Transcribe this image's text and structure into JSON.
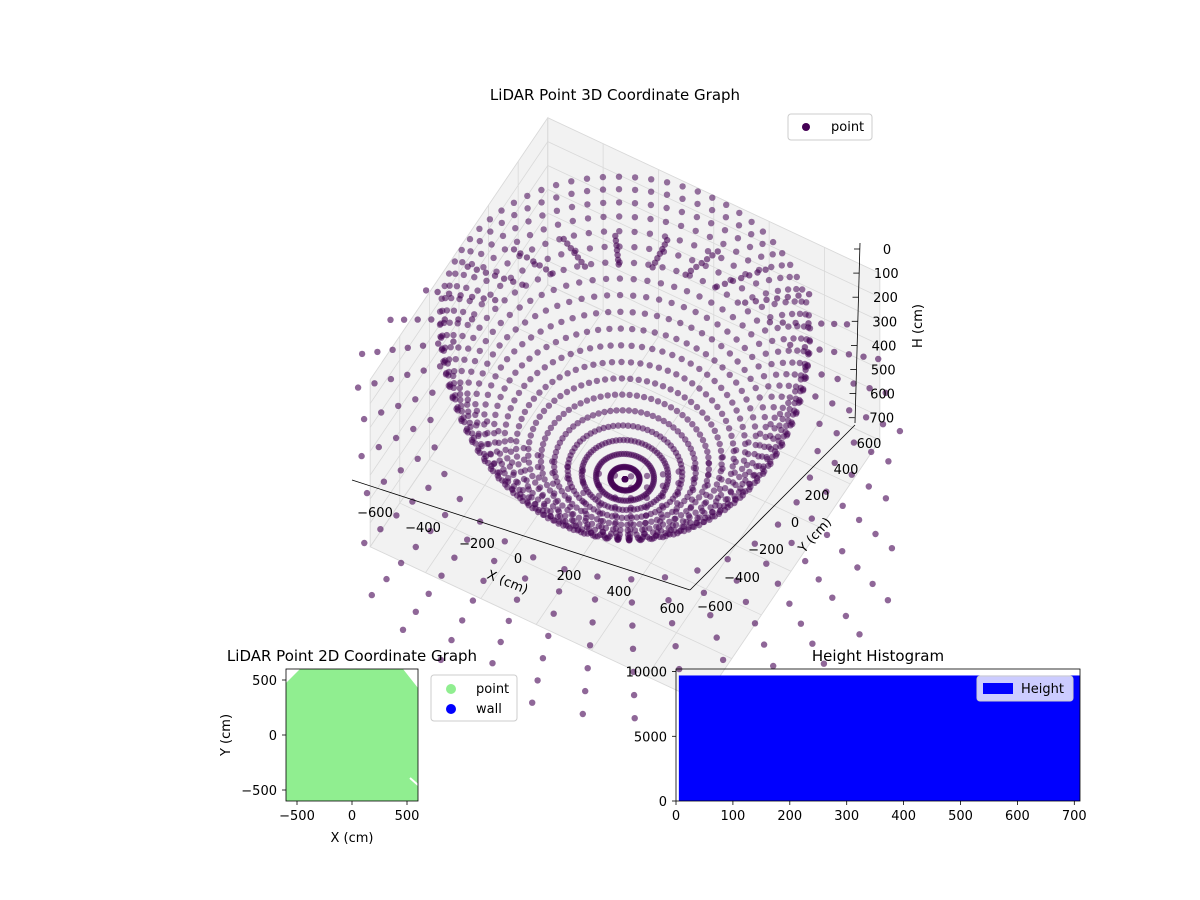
{
  "colors": {
    "point_3d": "#440154",
    "point_2d": "#90ee90",
    "wall": "#0000ff",
    "histogram": "#0000ff",
    "pane": "#f2f2f2",
    "grid": "#d9d9d9"
  },
  "chart_data": [
    {
      "type": "scatter",
      "projection": "3d",
      "title": "LiDAR Point 3D Coordinate Graph",
      "xlabel": "X (cm)",
      "ylabel": "Y (cm)",
      "zlabel": "H (cm)",
      "xlim": [
        -600,
        600
      ],
      "ylim": [
        -600,
        600
      ],
      "zlim": [
        700,
        0
      ],
      "z_inverted": true,
      "x_ticks": [
        "−600",
        "−400",
        "−200",
        "0",
        "200",
        "400",
        "600"
      ],
      "y_ticks": [
        "−600",
        "−400",
        "−200",
        "0",
        "200",
        "400",
        "600"
      ],
      "z_ticks": [
        "0",
        "100",
        "200",
        "300",
        "400",
        "500",
        "600",
        "700"
      ],
      "legend": {
        "position": "upper-right",
        "entries": [
          {
            "label": "point",
            "color": "#440154"
          }
        ]
      },
      "series": [
        {
          "name": "point",
          "description_shape": "bowl of points, radius ~600 cm, depth ~700 cm"
        }
      ],
      "grid": true
    },
    {
      "type": "scatter",
      "title": "LiDAR Point 2D Coordinate Graph",
      "xlabel": "X (cm)",
      "ylabel": "Y (cm)",
      "xlim": [
        -600,
        600
      ],
      "ylim": [
        -600,
        600
      ],
      "x_ticks": [
        "−500",
        "0",
        "500"
      ],
      "y_ticks": [
        "−500",
        "0",
        "500"
      ],
      "legend": {
        "position": "outside-right",
        "entries": [
          {
            "label": "point",
            "color": "#90ee90"
          },
          {
            "label": "wall",
            "color": "#0000ff"
          }
        ]
      },
      "series": [
        {
          "name": "point",
          "extent": [
            [
              -600,
              600
            ],
            [
              -600,
              600
            ]
          ]
        },
        {
          "name": "wall",
          "points": []
        }
      ]
    },
    {
      "type": "bar",
      "subtype": "histogram",
      "title": "Height Histogram",
      "xlabel": "",
      "ylabel": "",
      "xlim": [
        0,
        710
      ],
      "ylim": [
        0,
        10200
      ],
      "x_ticks": [
        "0",
        "100",
        "200",
        "300",
        "400",
        "500",
        "600",
        "700"
      ],
      "y_ticks": [
        "0",
        "5000",
        "10000"
      ],
      "legend": {
        "position": "upper-right",
        "entries": [
          {
            "label": "Height",
            "color": "#0000ff"
          }
        ]
      },
      "series": [
        {
          "name": "Height",
          "bin_range": [
            5,
            710
          ],
          "count": 9700
        }
      ]
    }
  ]
}
